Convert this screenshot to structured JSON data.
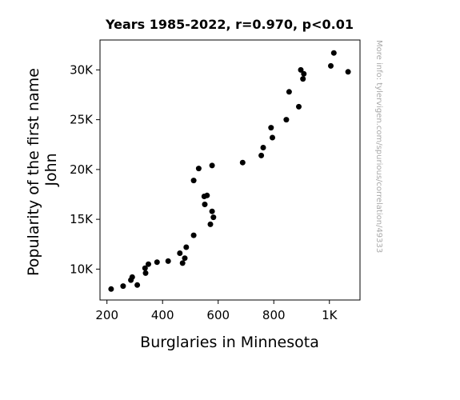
{
  "chart_data": {
    "type": "scatter",
    "title": "Years 1985-2022, r=0.970, p<0.01",
    "xlabel": "Burglaries in Minnesota",
    "ylabel_lines": [
      "Popularity of the first name",
      "John"
    ],
    "watermark": "More info: tylervigen.com/spurious/correlation/49333",
    "xlim": [
      175,
      1110
    ],
    "ylim": [
      6900,
      33000
    ],
    "x_ticks": [
      200,
      400,
      600,
      800,
      1000
    ],
    "x_tick_labels": [
      "200",
      "400",
      "600",
      "800",
      "1K"
    ],
    "y_ticks": [
      10000,
      15000,
      20000,
      25000,
      30000
    ],
    "y_tick_labels": [
      "10K",
      "15K",
      "20K",
      "25K",
      "30K"
    ],
    "grid": false,
    "point_color": "#000000",
    "points": [
      {
        "x": 1016,
        "y": 31700
      },
      {
        "x": 1005,
        "y": 30400
      },
      {
        "x": 1067,
        "y": 29800
      },
      {
        "x": 897,
        "y": 30000
      },
      {
        "x": 908,
        "y": 29600
      },
      {
        "x": 905,
        "y": 29100
      },
      {
        "x": 855,
        "y": 27800
      },
      {
        "x": 890,
        "y": 26300
      },
      {
        "x": 845,
        "y": 25000
      },
      {
        "x": 790,
        "y": 24200
      },
      {
        "x": 795,
        "y": 23200
      },
      {
        "x": 762,
        "y": 22200
      },
      {
        "x": 755,
        "y": 21400
      },
      {
        "x": 688,
        "y": 20700
      },
      {
        "x": 578,
        "y": 20400
      },
      {
        "x": 530,
        "y": 20100
      },
      {
        "x": 512,
        "y": 18900
      },
      {
        "x": 560,
        "y": 17400
      },
      {
        "x": 550,
        "y": 17300
      },
      {
        "x": 552,
        "y": 16500
      },
      {
        "x": 578,
        "y": 15800
      },
      {
        "x": 583,
        "y": 15200
      },
      {
        "x": 572,
        "y": 14500
      },
      {
        "x": 512,
        "y": 13400
      },
      {
        "x": 485,
        "y": 12200
      },
      {
        "x": 462,
        "y": 11600
      },
      {
        "x": 480,
        "y": 11100
      },
      {
        "x": 420,
        "y": 10800
      },
      {
        "x": 380,
        "y": 10700
      },
      {
        "x": 472,
        "y": 10600
      },
      {
        "x": 349,
        "y": 10500
      },
      {
        "x": 337,
        "y": 10100
      },
      {
        "x": 339,
        "y": 9600
      },
      {
        "x": 291,
        "y": 9200
      },
      {
        "x": 286,
        "y": 8900
      },
      {
        "x": 258,
        "y": 8300
      },
      {
        "x": 309,
        "y": 8400
      },
      {
        "x": 215,
        "y": 8000
      }
    ]
  }
}
